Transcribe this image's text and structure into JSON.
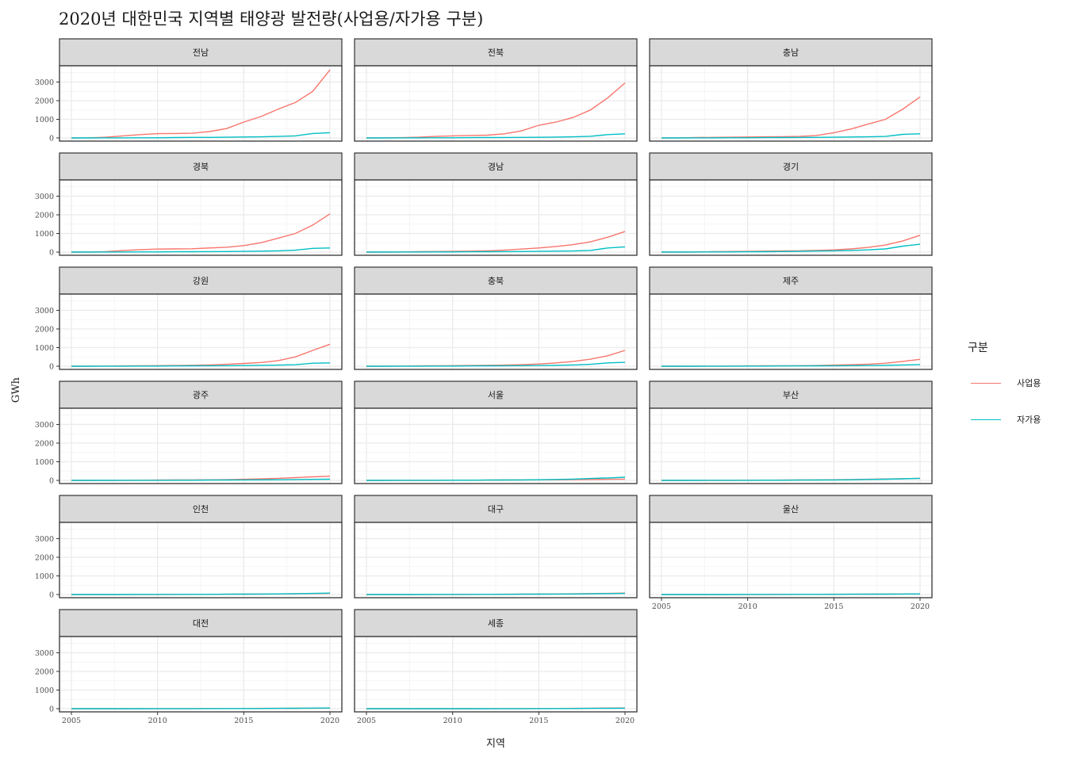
{
  "title": "2020년 대한민국 지역별 태양광 발전량(사업용/자가용 구분)",
  "chart_data": {
    "type": "line",
    "title": "2020년 대한민국 지역별 태양광 발전량(사업용/자가용 구분)",
    "xlabel": "지역",
    "ylabel": "GWh",
    "xlim": [
      2005,
      2020
    ],
    "ylim": [
      0,
      3700
    ],
    "x_ticks": [
      2005,
      2010,
      2015,
      2020
    ],
    "y_ticks": [
      0,
      1000,
      2000,
      3000
    ],
    "grid": true,
    "legend_title": "구분",
    "legend_position": "right",
    "series_names": [
      "사업용",
      "자가용"
    ],
    "series_colors": [
      "#F8766D",
      "#00BFC4"
    ],
    "x": [
      2005,
      2006,
      2007,
      2008,
      2009,
      2010,
      2011,
      2012,
      2013,
      2014,
      2015,
      2016,
      2017,
      2018,
      2019,
      2020
    ],
    "facets": [
      {
        "name": "전남",
        "series": [
          {
            "name": "사업용",
            "values": [
              0,
              10,
              40,
              110,
              180,
              230,
              240,
              250,
              340,
              500,
              850,
              1150,
              1550,
              1900,
              2500,
              3650
            ]
          },
          {
            "name": "자가용",
            "values": [
              0,
              0,
              5,
              5,
              10,
              10,
              20,
              30,
              30,
              40,
              50,
              60,
              80,
              110,
              240,
              280
            ]
          }
        ]
      },
      {
        "name": "전북",
        "series": [
          {
            "name": "사업용",
            "values": [
              0,
              5,
              15,
              40,
              80,
              110,
              130,
              150,
              220,
              380,
              680,
              850,
              1100,
              1500,
              2150,
              2950
            ]
          },
          {
            "name": "자가용",
            "values": [
              0,
              0,
              5,
              5,
              10,
              10,
              15,
              20,
              25,
              30,
              35,
              45,
              60,
              90,
              180,
              220
            ]
          }
        ]
      },
      {
        "name": "충남",
        "series": [
          {
            "name": "사업용",
            "values": [
              0,
              5,
              20,
              30,
              40,
              50,
              60,
              70,
              80,
              130,
              280,
              480,
              750,
              1000,
              1550,
              2200
            ]
          },
          {
            "name": "자가용",
            "values": [
              0,
              0,
              5,
              5,
              10,
              10,
              15,
              20,
              25,
              30,
              40,
              50,
              60,
              80,
              190,
              220
            ]
          }
        ]
      },
      {
        "name": "경북",
        "series": [
          {
            "name": "사업용",
            "values": [
              0,
              5,
              25,
              80,
              130,
              160,
              170,
              180,
              220,
              260,
              350,
              500,
              750,
              1000,
              1450,
              2050
            ]
          },
          {
            "name": "자가용",
            "values": [
              0,
              0,
              5,
              5,
              10,
              10,
              15,
              20,
              25,
              30,
              40,
              50,
              70,
              100,
              200,
              220
            ]
          }
        ]
      },
      {
        "name": "경남",
        "series": [
          {
            "name": "사업용",
            "values": [
              0,
              5,
              10,
              20,
              30,
              40,
              50,
              70,
              100,
              160,
              220,
              300,
              400,
              550,
              800,
              1100
            ]
          },
          {
            "name": "자가용",
            "values": [
              0,
              0,
              5,
              5,
              10,
              10,
              15,
              20,
              25,
              30,
              40,
              50,
              60,
              90,
              220,
              280
            ]
          }
        ]
      },
      {
        "name": "경기",
        "series": [
          {
            "name": "사업용",
            "values": [
              0,
              5,
              10,
              20,
              30,
              40,
              50,
              60,
              70,
              90,
              120,
              170,
              250,
              380,
              600,
              900
            ]
          },
          {
            "name": "자가용",
            "values": [
              0,
              0,
              5,
              10,
              10,
              15,
              20,
              30,
              40,
              55,
              70,
              90,
              120,
              170,
              320,
              420
            ]
          }
        ]
      },
      {
        "name": "강원",
        "series": [
          {
            "name": "사업용",
            "values": [
              0,
              5,
              10,
              15,
              20,
              30,
              40,
              50,
              70,
              100,
              150,
              200,
              300,
              500,
              850,
              1180
            ]
          },
          {
            "name": "자가용",
            "values": [
              0,
              0,
              5,
              5,
              10,
              10,
              15,
              20,
              25,
              30,
              40,
              50,
              60,
              80,
              160,
              180
            ]
          }
        ]
      },
      {
        "name": "충북",
        "series": [
          {
            "name": "사업용",
            "values": [
              0,
              5,
              10,
              15,
              20,
              30,
              40,
              50,
              60,
              80,
              120,
              180,
              260,
              380,
              560,
              850
            ]
          },
          {
            "name": "자가용",
            "values": [
              0,
              0,
              5,
              5,
              10,
              10,
              15,
              20,
              25,
              30,
              40,
              50,
              70,
              100,
              180,
              210
            ]
          }
        ]
      },
      {
        "name": "제주",
        "series": [
          {
            "name": "사업용",
            "values": [
              0,
              0,
              5,
              5,
              10,
              15,
              20,
              25,
              30,
              40,
              60,
              80,
              110,
              160,
              260,
              370
            ]
          },
          {
            "name": "자가용",
            "values": [
              0,
              0,
              0,
              5,
              5,
              10,
              10,
              15,
              15,
              20,
              25,
              30,
              40,
              50,
              70,
              90
            ]
          }
        ]
      },
      {
        "name": "광주",
        "series": [
          {
            "name": "사업용",
            "values": [
              0,
              0,
              5,
              5,
              10,
              15,
              20,
              25,
              30,
              40,
              60,
              80,
              110,
              150,
              190,
              220
            ]
          },
          {
            "name": "자가용",
            "values": [
              0,
              0,
              0,
              5,
              5,
              5,
              10,
              10,
              15,
              20,
              25,
              30,
              35,
              45,
              55,
              65
            ]
          }
        ]
      },
      {
        "name": "서울",
        "series": [
          {
            "name": "사업용",
            "values": [
              0,
              0,
              5,
              5,
              5,
              10,
              10,
              15,
              20,
              25,
              30,
              35,
              40,
              50,
              60,
              70
            ]
          },
          {
            "name": "자가용",
            "values": [
              0,
              0,
              5,
              5,
              5,
              10,
              10,
              15,
              20,
              25,
              35,
              50,
              70,
              100,
              130,
              170
            ]
          }
        ]
      },
      {
        "name": "부산",
        "series": [
          {
            "name": "사업용",
            "values": [
              0,
              0,
              5,
              5,
              5,
              10,
              10,
              15,
              20,
              25,
              35,
              45,
              60,
              75,
              90,
              110
            ]
          },
          {
            "name": "자가용",
            "values": [
              0,
              0,
              0,
              5,
              5,
              5,
              10,
              10,
              15,
              20,
              25,
              35,
              50,
              65,
              85,
              110
            ]
          }
        ]
      },
      {
        "name": "인천",
        "series": [
          {
            "name": "사업용",
            "values": [
              0,
              0,
              0,
              5,
              5,
              5,
              10,
              10,
              10,
              15,
              20,
              25,
              30,
              40,
              50,
              60
            ]
          },
          {
            "name": "자가용",
            "values": [
              0,
              0,
              0,
              0,
              5,
              5,
              5,
              10,
              10,
              15,
              20,
              25,
              35,
              45,
              60,
              75
            ]
          }
        ]
      },
      {
        "name": "대구",
        "series": [
          {
            "name": "사업용",
            "values": [
              0,
              0,
              0,
              5,
              5,
              5,
              10,
              10,
              15,
              20,
              25,
              30,
              40,
              50,
              60,
              75
            ]
          },
          {
            "name": "자가용",
            "values": [
              0,
              0,
              0,
              0,
              5,
              5,
              5,
              10,
              10,
              15,
              20,
              25,
              30,
              40,
              50,
              60
            ]
          }
        ]
      },
      {
        "name": "울산",
        "series": [
          {
            "name": "사업용",
            "values": [
              0,
              0,
              0,
              0,
              5,
              5,
              5,
              10,
              10,
              10,
              15,
              15,
              20,
              25,
              30,
              35
            ]
          },
          {
            "name": "자가용",
            "values": [
              0,
              0,
              0,
              0,
              0,
              5,
              5,
              5,
              10,
              10,
              10,
              15,
              15,
              20,
              25,
              35
            ]
          }
        ]
      },
      {
        "name": "대전",
        "series": [
          {
            "name": "사업용",
            "values": [
              0,
              0,
              0,
              0,
              5,
              5,
              5,
              5,
              10,
              10,
              10,
              15,
              15,
              20,
              25,
              30
            ]
          },
          {
            "name": "자가용",
            "values": [
              0,
              0,
              0,
              0,
              0,
              5,
              5,
              5,
              5,
              10,
              10,
              10,
              15,
              20,
              30,
              40
            ]
          }
        ]
      },
      {
        "name": "세종",
        "series": [
          {
            "name": "사업용",
            "values": [
              0,
              0,
              0,
              0,
              0,
              0,
              0,
              5,
              5,
              5,
              10,
              10,
              15,
              25,
              35,
              40
            ]
          },
          {
            "name": "자가용",
            "values": [
              0,
              0,
              0,
              0,
              0,
              0,
              0,
              0,
              5,
              5,
              5,
              10,
              10,
              15,
              20,
              25
            ]
          }
        ]
      }
    ]
  }
}
